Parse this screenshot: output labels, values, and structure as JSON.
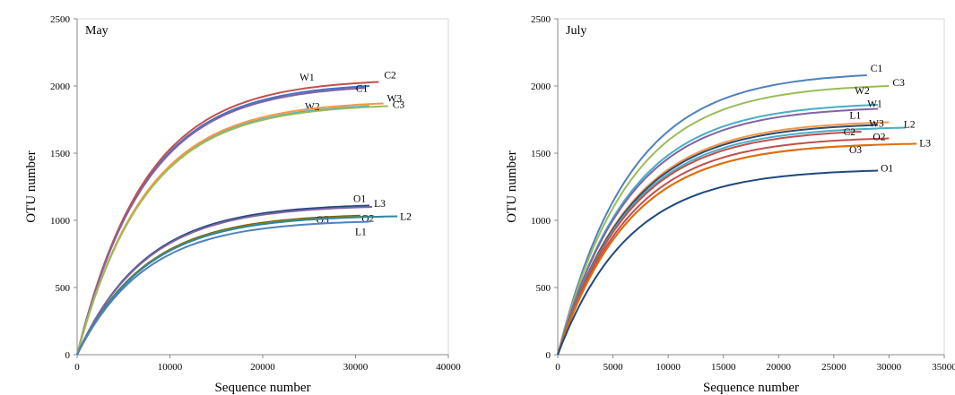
{
  "chart_data": [
    {
      "type": "line",
      "title": "May",
      "xlabel": "Sequence number",
      "ylabel": "OTU number",
      "xlim": [
        0,
        40000
      ],
      "ylim": [
        0,
        2500
      ],
      "xticks": [
        0,
        10000,
        20000,
        30000,
        40000
      ],
      "yticks": [
        0,
        500,
        1000,
        1500,
        2000,
        2500
      ],
      "grid": false,
      "legend": "inline labels",
      "series": [
        {
          "name": "W1",
          "color": "#4472c4",
          "xmax": 31500,
          "ymax": 2000
        },
        {
          "name": "C2",
          "color": "#c0504d",
          "xmax": 32500,
          "ymax": 2030
        },
        {
          "name": "C1",
          "color": "#8064a2",
          "xmax": 31000,
          "ymax": 1985
        },
        {
          "name": "W2",
          "color": "#4bacc6",
          "xmax": 31500,
          "ymax": 1850
        },
        {
          "name": "W3",
          "color": "#f79646",
          "xmax": 33000,
          "ymax": 1870
        },
        {
          "name": "C3",
          "color": "#9bbb59",
          "xmax": 33500,
          "ymax": 1850
        },
        {
          "name": "O1",
          "color": "#1f497d",
          "xmax": 31500,
          "ymax": 1110
        },
        {
          "name": "L3",
          "color": "#8064a2",
          "xmax": 31800,
          "ymax": 1100
        },
        {
          "name": "O3",
          "color": "#7f6000",
          "xmax": 30500,
          "ymax": 1035
        },
        {
          "name": "O2",
          "color": "#77933c",
          "xmax": 32000,
          "ymax": 1030
        },
        {
          "name": "L2",
          "color": "#31859c",
          "xmax": 34500,
          "ymax": 1030
        },
        {
          "name": "L1",
          "color": "#4f81bd",
          "xmax": 31500,
          "ymax": 990
        }
      ]
    },
    {
      "type": "line",
      "title": "July",
      "xlabel": "Sequence number",
      "ylabel": "OTU number",
      "xlim": [
        0,
        35000
      ],
      "ylim": [
        0,
        2500
      ],
      "xticks": [
        0,
        5000,
        10000,
        15000,
        20000,
        25000,
        30000,
        35000
      ],
      "yticks": [
        0,
        500,
        1000,
        1500,
        2000,
        2500
      ],
      "grid": false,
      "legend": "inline labels",
      "series": [
        {
          "name": "C1",
          "color": "#4f81bd",
          "xmax": 28000,
          "ymax": 2080
        },
        {
          "name": "C3",
          "color": "#9bbb59",
          "xmax": 30000,
          "ymax": 2000
        },
        {
          "name": "W2",
          "color": "#4bacc6",
          "xmax": 29000,
          "ymax": 1860
        },
        {
          "name": "W1",
          "color": "#8064a2",
          "xmax": 29000,
          "ymax": 1830
        },
        {
          "name": "L1",
          "color": "#f79646",
          "xmax": 30000,
          "ymax": 1730
        },
        {
          "name": "W3",
          "color": "#2c4d75",
          "xmax": 29000,
          "ymax": 1710
        },
        {
          "name": "L2",
          "color": "#4bacc6",
          "xmax": 31500,
          "ymax": 1690
        },
        {
          "name": "C2",
          "color": "#c0504d",
          "xmax": 27500,
          "ymax": 1660
        },
        {
          "name": "O2",
          "color": "#c0504d",
          "xmax": 30000,
          "ymax": 1610
        },
        {
          "name": "O3",
          "color": "#77933c",
          "xmax": 28500,
          "ymax": 1560
        },
        {
          "name": "L3",
          "color": "#e46c0a",
          "xmax": 32500,
          "ymax": 1570
        },
        {
          "name": "O1",
          "color": "#1f497d",
          "xmax": 29000,
          "ymax": 1370
        }
      ]
    }
  ]
}
